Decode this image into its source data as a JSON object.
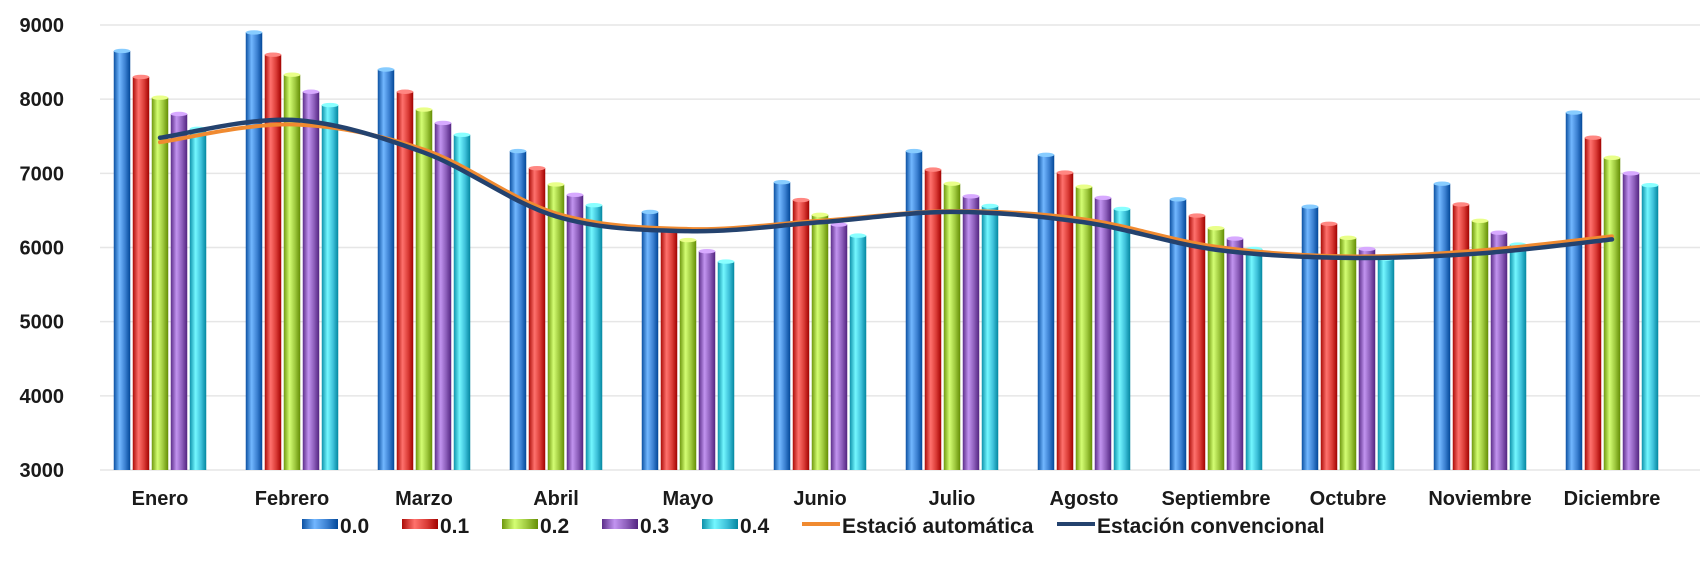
{
  "chart_data": {
    "type": "bar",
    "categories": [
      "Enero",
      "Febrero",
      "Marzo",
      "Abril",
      "Mayo",
      "Junio",
      "Julio",
      "Agosto",
      "Septiembre",
      "Octubre",
      "Noviembre",
      "Diciembre"
    ],
    "series": [
      {
        "name": "0.0",
        "type": "bar",
        "color": "#3a7fd0",
        "values": [
          8650,
          8900,
          8400,
          7300,
          6480,
          6880,
          7300,
          7250,
          6650,
          6550,
          6860,
          7820
        ]
      },
      {
        "name": "0.1",
        "type": "bar",
        "color": "#d93a35",
        "values": [
          8300,
          8600,
          8100,
          7070,
          6230,
          6640,
          7050,
          7010,
          6430,
          6320,
          6580,
          7480
        ]
      },
      {
        "name": "0.2",
        "type": "bar",
        "color": "#9cc63c",
        "values": [
          8020,
          8330,
          7860,
          6850,
          6100,
          6440,
          6860,
          6820,
          6260,
          6130,
          6360,
          7210
        ]
      },
      {
        "name": "0.3",
        "type": "bar",
        "color": "#8a5cb8",
        "values": [
          7800,
          8100,
          7680,
          6710,
          5950,
          6310,
          6690,
          6670,
          6120,
          5980,
          6200,
          7000
        ]
      },
      {
        "name": "0.4",
        "type": "bar",
        "color": "#3cbfd8",
        "values": [
          7600,
          7920,
          7520,
          6570,
          5810,
          6160,
          6560,
          6520,
          5980,
          5850,
          6040,
          6840
        ]
      },
      {
        "name": "Estació automática",
        "type": "line",
        "color": "#f08a30",
        "values": [
          7420,
          7660,
          7320,
          6460,
          6250,
          6360,
          6490,
          6380,
          6010,
          5880,
          5960,
          6150
        ]
      },
      {
        "name": "Estación convencional",
        "type": "line",
        "color": "#24426e",
        "values": [
          7480,
          7720,
          7280,
          6420,
          6220,
          6340,
          6480,
          6340,
          5970,
          5860,
          5920,
          6110
        ]
      }
    ],
    "xlabel": "",
    "ylabel": "",
    "ylim": [
      3000,
      9000
    ],
    "yticks": [
      3000,
      4000,
      5000,
      6000,
      7000,
      8000,
      9000
    ],
    "grid": true,
    "legend": "bottom"
  }
}
